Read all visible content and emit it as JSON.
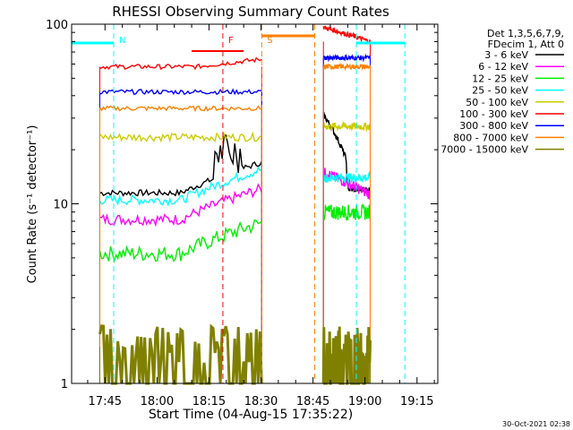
{
  "chart_data": {
    "type": "line",
    "title": "RHESSI Observing Summary Count Rates",
    "xlabel": "Start Time (04-Aug-15 17:35:22)",
    "ylabel": "Count Rate (s⁻¹ detector⁻¹)",
    "x_ticks": [
      "17:45",
      "18:00",
      "18:15",
      "18:30",
      "18:45",
      "19:00",
      "19:15"
    ],
    "x_tick_minutes": [
      45,
      60,
      75,
      90,
      105,
      120,
      135
    ],
    "x_range_minutes": [
      35.37,
      141.0
    ],
    "y_scale": "log",
    "y_range": [
      1,
      100
    ],
    "y_ticks": [
      "1",
      "10",
      "100"
    ],
    "legend_header": [
      "Det 1,3,5,6,7,9,",
      "FDecim 1, Att 0"
    ],
    "series": [
      {
        "name": "3 - 6 keV",
        "color": "#000000"
      },
      {
        "name": "6 - 12 keV",
        "color": "#ff00ff"
      },
      {
        "name": "12 - 25 keV",
        "color": "#00ee00"
      },
      {
        "name": "25 - 50 keV",
        "color": "#00ffff"
      },
      {
        "name": "50 - 100 keV",
        "color": "#cccc00"
      },
      {
        "name": "100 - 300 keV",
        "color": "#ff0000"
      },
      {
        "name": "300 - 800 keV",
        "color": "#0000ff"
      },
      {
        "name": "800 - 7000 keV",
        "color": "#ff8000"
      },
      {
        "name": "7000 - 15000 keV",
        "color": "#808000"
      }
    ],
    "levels_segment1": {
      "start_min": 43.5,
      "end_min": 90.2,
      "3 - 6 keV": 11.5,
      "6 - 12 keV": 8.2,
      "12 - 25 keV": 5.3,
      "25 - 50 keV": 10.5,
      "50 - 100 keV": 23.5,
      "100 - 300 keV": 58,
      "300 - 800 keV": 42,
      "800 - 7000 keV": 34,
      "7000 - 15000 keV": 1.6
    },
    "levels_segment2": {
      "start_min": 108.0,
      "end_min": 121.5,
      "3 - 6 keV": 12,
      "6 - 12 keV": 12.5,
      "12 - 25 keV": 9,
      "25 - 50 keV": 14,
      "50 - 100 keV": 27,
      "100 - 300 keV": 80,
      "300 - 800 keV": 65,
      "800 - 7000 keV": 58,
      "7000 - 15000 keV": 1.6
    },
    "annotations": [
      {
        "label": "N",
        "color": "#00ffff",
        "minute": 47.5
      },
      {
        "label": "F",
        "color": "#ff0000",
        "minute": 79.0
      },
      {
        "label": "S",
        "color": "#ff8000",
        "minute": 90.2
      }
    ],
    "timestamp": "30-Oct-2021 02:38"
  }
}
